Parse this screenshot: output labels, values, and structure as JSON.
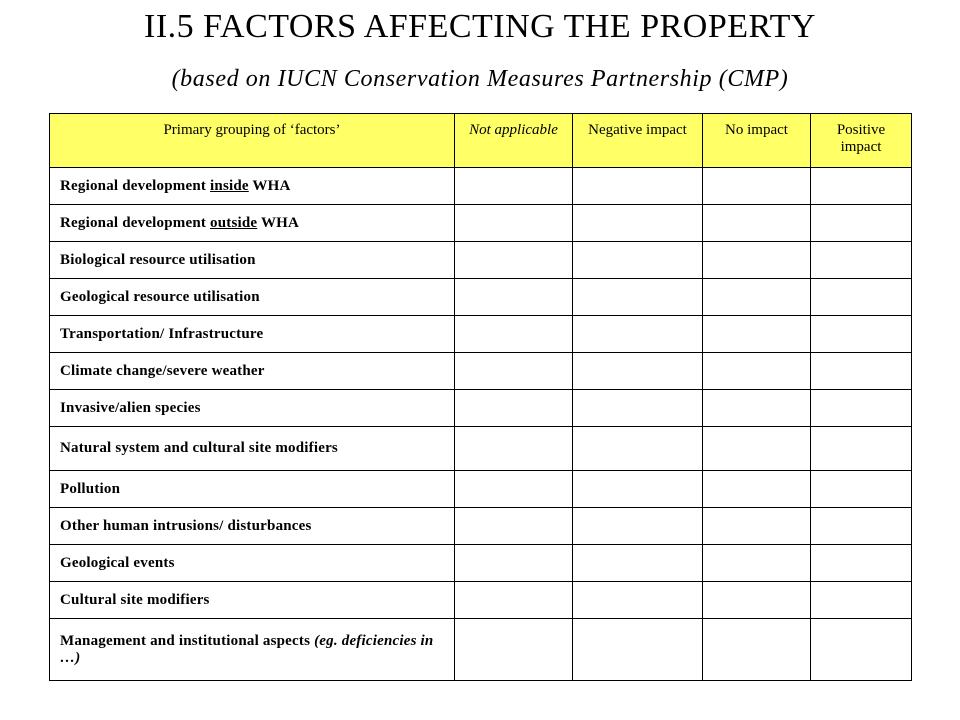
{
  "title": "II.5 FACTORS AFFECTING THE PROPERTY",
  "subtitle": "(based on IUCN Conservation Measures Partnership (CMP)",
  "table": {
    "header_color": "#ffff66",
    "headers": {
      "grouping": "Primary grouping of ‘factors’",
      "not_applicable": "Not applicable",
      "negative": "Negative impact",
      "no_impact": "No impact",
      "positive": "Positive impact"
    },
    "rows": [
      {
        "pre": "Regional development ",
        "emph": "inside",
        "post": " WHA"
      },
      {
        "pre": "Regional development ",
        "emph": "outside",
        "post": " WHA"
      },
      {
        "text": "Biological resource utilisation"
      },
      {
        "text": "Geological resource utilisation"
      },
      {
        "text": "Transportation/ Infrastructure"
      },
      {
        "text": "Climate change/severe weather"
      },
      {
        "text": "Invasive/alien species"
      },
      {
        "text": "Natural system and cultural site modifiers"
      },
      {
        "text": "Pollution"
      },
      {
        "text": "Other human intrusions/ disturbances"
      },
      {
        "text": "Geological events"
      },
      {
        "text": "Cultural site modifiers"
      },
      {
        "text": "Management and institutional aspects",
        "italic": " (eg. deficiencies in …)"
      }
    ]
  }
}
